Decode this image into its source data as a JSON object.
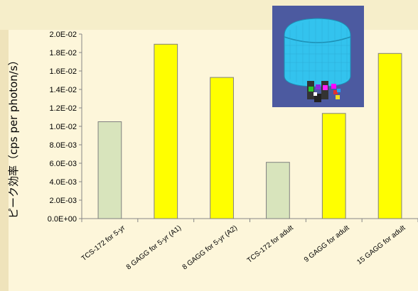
{
  "chart_data": {
    "type": "bar",
    "title": "",
    "xlabel": "",
    "ylabel": "ピーク効率（cps per photon/s）",
    "categories": [
      "TCS-172 for 5-yr",
      "8 GAGG for 5-yr (A1)",
      "8 GAGG for 5-yr (A2)",
      "TCS-172 for adult",
      "9 GAGG for adult",
      "15 GAGG for adult"
    ],
    "values": [
      0.0105,
      0.0189,
      0.0153,
      0.0061,
      0.0114,
      0.0179
    ],
    "ylim": [
      0,
      0.02
    ],
    "yticks": [
      "0.0E+00",
      "2.0E-03",
      "4.0E-03",
      "6.0E-03",
      "8.0E-03",
      "1.0E-02",
      "1.2E-02",
      "1.4E-02",
      "1.6E-02",
      "1.8E-02",
      "2.0E-02"
    ],
    "bar_colors": [
      "#d8e4bc",
      "#ffff00",
      "#ffff00",
      "#d8e4bc",
      "#ffff00",
      "#ffff00"
    ],
    "bar_edge_color": "#808080",
    "grid": false,
    "legend": "none"
  },
  "inset_image": {
    "icon": "detector-model-3d-icon",
    "background": "#4c5aa0",
    "body_color": "#33c3ee"
  }
}
